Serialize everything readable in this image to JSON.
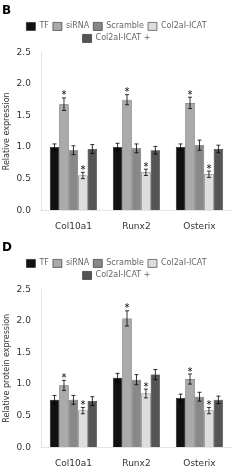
{
  "chart_data": [
    {
      "type": "bar",
      "title": "B",
      "y_label": "Relative expression",
      "categories": [
        "Col10a1",
        "Runx2",
        "Osterix"
      ],
      "series": [
        {
          "name": "TF",
          "color": "#111111",
          "values": [
            1.0,
            1.0,
            1.0
          ],
          "errors": [
            0.05,
            0.06,
            0.05
          ]
        },
        {
          "name": "siRNA",
          "color": "#aaaaaa",
          "values": [
            1.68,
            1.75,
            1.7
          ],
          "errors": [
            0.1,
            0.08,
            0.09
          ]
        },
        {
          "name": "Scramble",
          "color": "#888888",
          "values": [
            0.95,
            0.98,
            1.03
          ],
          "errors": [
            0.07,
            0.07,
            0.08
          ]
        },
        {
          "name": "Col2aI-ICAT",
          "color": "#dddddd",
          "values": [
            0.55,
            0.6,
            0.57
          ],
          "errors": [
            0.05,
            0.05,
            0.05
          ]
        },
        {
          "name": "Col2aI-ICAT +",
          "color": "#555555",
          "values": [
            0.97,
            0.95,
            0.97
          ],
          "errors": [
            0.07,
            0.06,
            0.06
          ]
        }
      ],
      "annotations": [
        {
          "text": "*",
          "series": "siRNA",
          "category": "Col10a1"
        },
        {
          "text": "*",
          "series": "Col2aI-ICAT",
          "category": "Col10a1"
        },
        {
          "text": "*",
          "series": "siRNA",
          "category": "Runx2"
        },
        {
          "text": "*",
          "series": "Col2aI-ICAT",
          "category": "Runx2"
        },
        {
          "text": "*",
          "series": "siRNA",
          "category": "Osterix"
        },
        {
          "text": "*",
          "series": "Col2aI-ICAT",
          "category": "Osterix"
        }
      ],
      "ylim": [
        0,
        2.5
      ],
      "yticks": [
        {
          "value": 0,
          "label": "0.0"
        },
        0.5,
        {
          "value": 1,
          "label": "1.0"
        },
        1.5,
        {
          "value": 2,
          "label": "2.0"
        },
        2.5
      ],
      "grid": false,
      "legend": "top"
    },
    {
      "type": "bar",
      "title": "D",
      "y_label": "Relative protein expression",
      "categories": [
        "Col10a1",
        "Runx2",
        "Osterix"
      ],
      "series": [
        {
          "name": "TF",
          "color": "#111111",
          "values": [
            0.75,
            1.1,
            0.78
          ],
          "errors": [
            0.07,
            0.07,
            0.06
          ]
        },
        {
          "name": "siRNA",
          "color": "#aaaaaa",
          "values": [
            0.98,
            2.04,
            1.08
          ],
          "errors": [
            0.08,
            0.12,
            0.08
          ]
        },
        {
          "name": "Scramble",
          "color": "#888888",
          "values": [
            0.75,
            1.07,
            0.8
          ],
          "errors": [
            0.07,
            0.08,
            0.07
          ]
        },
        {
          "name": "Col2aI-ICAT",
          "color": "#dddddd",
          "values": [
            0.58,
            0.85,
            0.58
          ],
          "errors": [
            0.05,
            0.07,
            0.05
          ]
        },
        {
          "name": "Col2aI-ICAT +",
          "color": "#555555",
          "values": [
            0.73,
            1.15,
            0.75
          ],
          "errors": [
            0.07,
            0.08,
            0.06
          ]
        }
      ],
      "annotations": [
        {
          "text": "*",
          "series": "siRNA",
          "category": "Col10a1"
        },
        {
          "text": "*",
          "series": "Col2aI-ICAT",
          "category": "Col10a1"
        },
        {
          "text": "*",
          "series": "siRNA",
          "category": "Runx2"
        },
        {
          "text": "*",
          "series": "Col2aI-ICAT",
          "category": "Runx2"
        },
        {
          "text": "*",
          "series": "siRNA",
          "category": "Osterix"
        },
        {
          "text": "*",
          "series": "Col2aI-ICAT",
          "category": "Osterix"
        }
      ],
      "ylim": [
        0,
        2.5
      ],
      "yticks": [
        {
          "value": 0,
          "label": "0.0"
        },
        0.5,
        {
          "value": 1,
          "label": "1.0"
        },
        1.5,
        {
          "value": 2,
          "label": "2.0"
        },
        2.5
      ],
      "grid": false,
      "legend": "top"
    }
  ]
}
